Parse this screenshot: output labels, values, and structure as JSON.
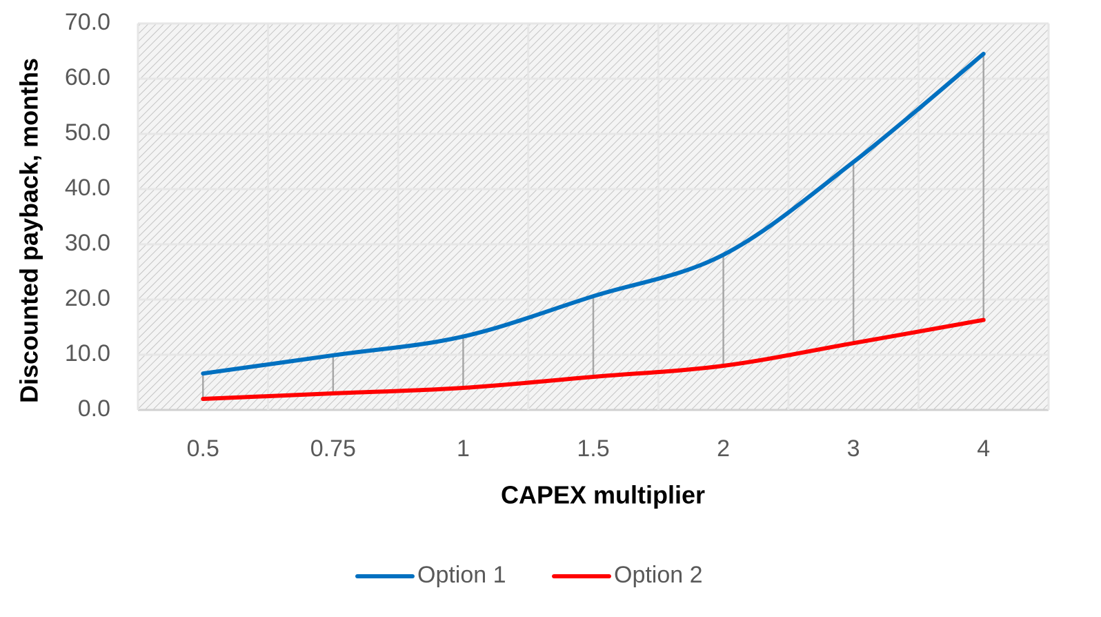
{
  "chart_data": {
    "type": "line",
    "x_label": "CAPEX multiplier",
    "y_label": "Discounted payback, months",
    "categories": [
      "0.5",
      "0.75",
      "1",
      "1.5",
      "2",
      "3",
      "4"
    ],
    "series": [
      {
        "name": "Option 1",
        "color": "#0070c0",
        "values": [
          6.6,
          9.9,
          13.3,
          20.6,
          28.1,
          44.9,
          64.5
        ]
      },
      {
        "name": "Option 2",
        "color": "#ff0000",
        "values": [
          2.0,
          3.0,
          4.0,
          6.0,
          8.0,
          12.1,
          16.3
        ]
      }
    ],
    "ylim": [
      0,
      70
    ],
    "yticks": [
      {
        "value": 0,
        "label": "0.0"
      },
      {
        "value": 10,
        "label": "10.0"
      },
      {
        "value": 20,
        "label": "20.0"
      },
      {
        "value": 30,
        "label": "30.0"
      },
      {
        "value": 40,
        "label": "40.0"
      },
      {
        "value": 50,
        "label": "50.0"
      },
      {
        "value": 60,
        "label": "60.0"
      },
      {
        "value": 70,
        "label": "70.0"
      }
    ],
    "grid": true,
    "drop_lines": true,
    "legend": "bottom"
  }
}
